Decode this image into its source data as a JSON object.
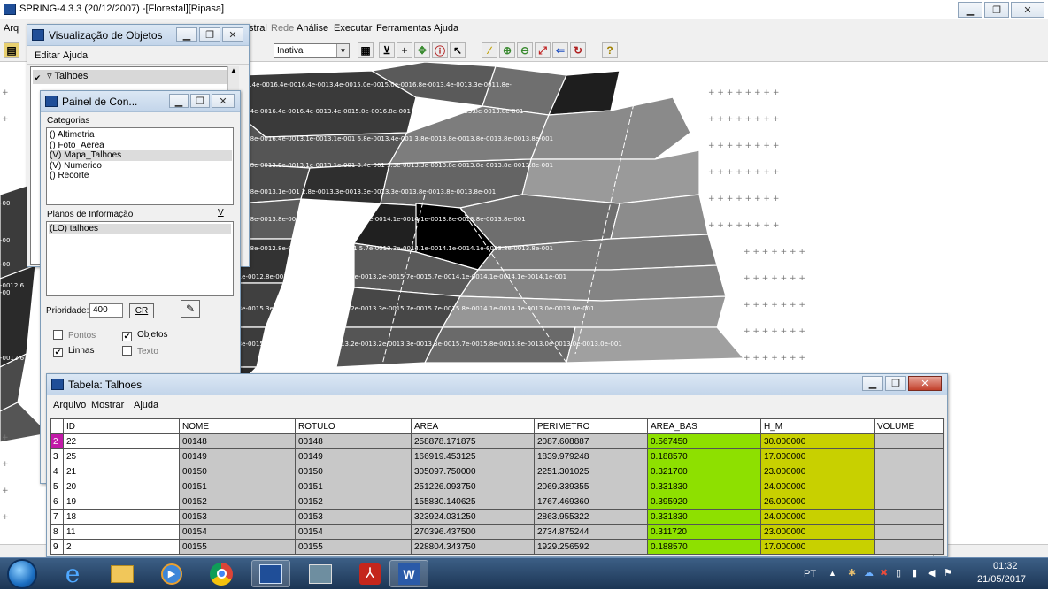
{
  "app": {
    "title": "SPRING-4.3.3 (20/12/2007) -[Florestal][Ripasa]"
  },
  "menubar": {
    "items": [
      "Arq",
      "stral",
      "Rede",
      "Análise",
      "Executar",
      "Ferramentas",
      "Ajuda"
    ]
  },
  "toolbar": {
    "mode_value": "Inativa"
  },
  "map": {
    "labels": [
      "6.4e-0016.4e-0016.4e-0013.4e-0015.0e-0015.0e-0016.8e-0013.4e-0013.3e-0011.8e-",
      "6.4e-0016.4e-0016.4e-0013.4e-0015.0e-0016.8e-001    3.4e-0013.8e-0013.8e-0013.8e-001",
      "3.8e-0016.4e-0013.1e-0013.1e-001    6.8e-0013.4e-001    3.8e-0013.8e-0013.8e-0013.8e-0013.8e-001",
      "3.8e-0013.8e-0013.1e-0013.1e-001    3.4e-001    3.3e-0013.3e-0013.8e-0013.8e-0013.8e-0013.8e-001",
      "3.8e-0013.1e-001    2.8e-0013.3e-0013.3e-0013.3e-0013.8e-0013.8e-0013.8e-001",
      "3.8e-0013.8e-001    2.8e-001    3.3e-0013.3e-0014.1e-0014.1e-0013.8e-0013.8e-0013.8e-001",
      "2.8e-0012.8e-001    2.0e-0012.8e-001    5.7e-0013.3e-0014.1e-0014.1e-0014.1e-0013.8e-0013.8e-001",
      "2.1e-0012.8e-0012.8e-001    2.8e-0013.2e-0013.2e-0015.7e-0015.7e-0014.1e-0014.1e-0014.1e-0014.1e-001",
      "5.3e-0015.3e-0012.8e-001    3.2e-0013.2e-0013.3e-0015.7e-0015.7e-0015.8e-0014.1e-0014.1e-0013.0e-0013.0e-001",
      "5.3e-0015.3e-0012.8e-001    3.1e-0013.2e-0013.2e-0013.3e-0013.3e-0015.7e-0015.8e-0015.8e-0013.0e-0013.0e-0013.0e-001"
    ],
    "left_labels": [
      "-00",
      "-00",
      "-00",
      "-00",
      "-00",
      "-0012.6",
      "-0012.6"
    ]
  },
  "viz_objetos": {
    "title": "Visualização de Objetos",
    "menu": [
      "Editar",
      "Ajuda"
    ],
    "item": "Talhoes"
  },
  "painel": {
    "title": "Painel de Con...",
    "categorias_label": "Categorias",
    "categorias": [
      "() Altimetria",
      "() Foto_Aerea",
      "(V) Mapa_Talhoes",
      "(V) Numerico",
      "() Recorte"
    ],
    "planos_label": "Planos de Informação",
    "planos_v": "V",
    "planos": [
      "(LO) talhoes"
    ],
    "prioridade_label": "Prioridade:",
    "prioridade_value": "400",
    "cr_label": "CR",
    "checks": [
      {
        "label": "Pontos",
        "checked": false
      },
      {
        "label": "Objetos",
        "checked": true
      },
      {
        "label": "Linhas",
        "checked": true
      },
      {
        "label": "Texto",
        "checked": false
      }
    ]
  },
  "tabela": {
    "title": "Tabela: Talhoes",
    "menu": [
      "Arquivo",
      "Mostrar",
      "Ajuda"
    ],
    "columns": [
      "ID",
      "NOME",
      "ROTULO",
      "AREA",
      "PERIMETRO",
      "AREA_BAS",
      "H_M",
      "VOLUME"
    ],
    "rows": [
      {
        "n": "2",
        "id": "22",
        "nome": "00148",
        "rotulo": "00148",
        "area": "258878.171875",
        "perimetro": "2087.608887",
        "area_bas": "0.567450",
        "h_m": "30.000000",
        "volume": ""
      },
      {
        "n": "3",
        "id": "25",
        "nome": "00149",
        "rotulo": "00149",
        "area": "166919.453125",
        "perimetro": "1839.979248",
        "area_bas": "0.188570",
        "h_m": "17.000000",
        "volume": ""
      },
      {
        "n": "4",
        "id": "21",
        "nome": "00150",
        "rotulo": "00150",
        "area": "305097.750000",
        "perimetro": "2251.301025",
        "area_bas": "0.321700",
        "h_m": "23.000000",
        "volume": ""
      },
      {
        "n": "5",
        "id": "20",
        "nome": "00151",
        "rotulo": "00151",
        "area": "251226.093750",
        "perimetro": "2069.339355",
        "area_bas": "0.331830",
        "h_m": "24.000000",
        "volume": ""
      },
      {
        "n": "6",
        "id": "19",
        "nome": "00152",
        "rotulo": "00152",
        "area": "155830.140625",
        "perimetro": "1767.469360",
        "area_bas": "0.395920",
        "h_m": "26.000000",
        "volume": ""
      },
      {
        "n": "7",
        "id": "18",
        "nome": "00153",
        "rotulo": "00153",
        "area": "323924.031250",
        "perimetro": "2863.955322",
        "area_bas": "0.331830",
        "h_m": "24.000000",
        "volume": ""
      },
      {
        "n": "8",
        "id": "11",
        "nome": "00154",
        "rotulo": "00154",
        "area": "270396.437500",
        "perimetro": "2734.875244",
        "area_bas": "0.311720",
        "h_m": "23.000000",
        "volume": ""
      },
      {
        "n": "9",
        "id": "2",
        "nome": "00155",
        "rotulo": "00155",
        "area": "228804.343750",
        "perimetro": "1929.256592",
        "area_bas": "0.188570",
        "h_m": "17.000000",
        "volume": ""
      }
    ]
  },
  "taskbar": {
    "lang": "PT",
    "time": "01:32",
    "date": "21/05/2017"
  },
  "colors": {
    "selected_row": "#c21aa8",
    "area_bas": "#8ee000",
    "h_m": "#c8d000"
  }
}
